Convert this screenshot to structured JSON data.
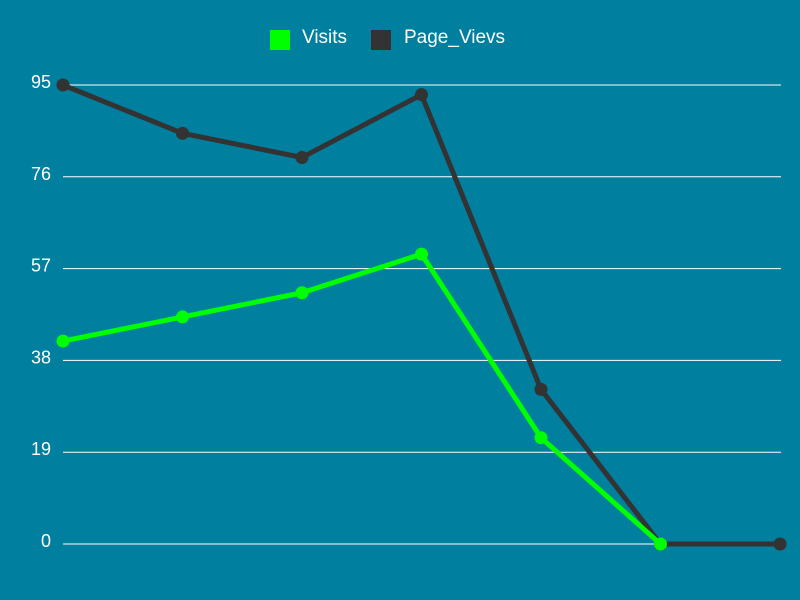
{
  "chart_data": {
    "type": "line",
    "title": "",
    "xlabel": "",
    "ylabel": "",
    "ylim": [
      0,
      95
    ],
    "yticks": [
      0,
      19,
      38,
      57,
      76,
      95
    ],
    "grid": true,
    "legend_position": "top-center",
    "x": [
      1,
      2,
      3,
      4,
      5,
      6,
      7
    ],
    "background_color": "#007f9f",
    "series": [
      {
        "name": "Visits",
        "color": "#00ff00",
        "values": [
          42,
          47,
          52,
          60,
          22,
          0,
          null
        ]
      },
      {
        "name": "Page_Vievs",
        "color": "#333333",
        "values": [
          95,
          85,
          80,
          93,
          32,
          0,
          0
        ]
      }
    ]
  }
}
